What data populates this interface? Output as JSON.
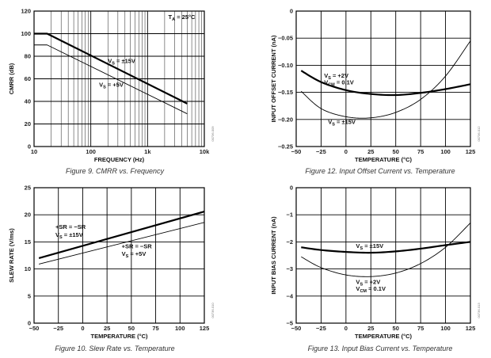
{
  "chart_data": [
    {
      "id": "cmrr",
      "type": "line",
      "title": "",
      "caption": "Figure 9. CMRR vs. Frequency",
      "code": "00736-009",
      "xlabel": "FREQUENCY (Hz)",
      "ylabel": "CMRR (dB)",
      "xscale": "log",
      "xlim": [
        10,
        10000
      ],
      "ylim": [
        0,
        120
      ],
      "xticks": [
        10,
        100,
        1000,
        10000
      ],
      "xtick_labels": [
        "10",
        "100",
        "1k",
        "10k"
      ],
      "yticks": [
        0,
        20,
        40,
        60,
        80,
        100,
        120
      ],
      "ytick_labels": [
        "0",
        "20",
        "40",
        "60",
        "80",
        "100",
        "120"
      ],
      "series": [
        {
          "name": "VS = ±15V",
          "weight": "thick",
          "x": [
            10,
            17,
            5000
          ],
          "y": [
            100,
            100,
            38
          ]
        },
        {
          "name": "VS = +5V",
          "weight": "thin",
          "x": [
            10,
            17,
            5000
          ],
          "y": [
            90,
            90,
            29
          ]
        }
      ],
      "annotations": [
        {
          "text": "TA = 25°C",
          "base": "T",
          "sub": "A",
          "rest": " = 25°C",
          "x": 4000,
          "y": 113,
          "anchor": "middle"
        },
        {
          "text": "VS = ±15V",
          "base": "V",
          "sub": "S",
          "rest": " = ±15V",
          "x": 200,
          "y": 74,
          "anchor": "start"
        },
        {
          "text": "VS = +5V",
          "base": "V",
          "sub": "S",
          "rest": " = +5V",
          "x": 140,
          "y": 53,
          "anchor": "start"
        }
      ]
    },
    {
      "id": "offset",
      "type": "line",
      "title": "",
      "caption": "Figure 12. Input Offset Current vs. Temperature",
      "code": "00736-012",
      "xlabel": "TEMPERATURE (°C)",
      "ylabel": "INPUT OFFSET CURRENT (nA)",
      "xscale": "linear",
      "xlim": [
        -50,
        125
      ],
      "ylim": [
        -0.25,
        0
      ],
      "xticks": [
        -50,
        -25,
        0,
        25,
        50,
        75,
        100,
        125
      ],
      "xtick_labels": [
        "−50",
        "−25",
        "0",
        "25",
        "50",
        "75",
        "100",
        "125"
      ],
      "yticks": [
        -0.25,
        -0.2,
        -0.15,
        -0.1,
        -0.05,
        0
      ],
      "ytick_labels": [
        "−0.25",
        "−0.20",
        "−0.15",
        "−0.10",
        "−0.05",
        "0"
      ],
      "series": [
        {
          "name": "VS = +2V, VCM = 0.1V",
          "weight": "thick",
          "x": [
            -45,
            -25,
            0,
            25,
            50,
            75,
            100,
            125
          ],
          "y": [
            -0.11,
            -0.131,
            -0.146,
            -0.153,
            -0.155,
            -0.151,
            -0.144,
            -0.135
          ]
        },
        {
          "name": "VS = ±15V",
          "weight": "thin",
          "x": [
            -45,
            -25,
            0,
            25,
            50,
            75,
            100,
            125
          ],
          "y": [
            -0.148,
            -0.18,
            -0.195,
            -0.197,
            -0.187,
            -0.163,
            -0.12,
            -0.055
          ]
        }
      ],
      "annotations": [
        {
          "text": "VS = +2V",
          "base": "V",
          "sub": "S",
          "rest": " = +2V",
          "x": -22,
          "y": -0.123,
          "anchor": "start"
        },
        {
          "text": "VCM = 0.1V",
          "base": "V",
          "sub": "CM",
          "rest": " = 0.1V",
          "x": -22,
          "y": -0.135,
          "anchor": "start"
        },
        {
          "text": "VS = ±15V",
          "base": "V",
          "sub": "S",
          "rest": " = ±15V",
          "x": -18,
          "y": -0.208,
          "anchor": "start"
        }
      ]
    },
    {
      "id": "slew",
      "type": "line",
      "title": "",
      "caption": "Figure 10. Slew Rate vs. Temperature",
      "code": "00736-010",
      "xlabel": "TEMPERATURE (°C)",
      "ylabel": "SLEW RATE (V/ms)",
      "xscale": "linear",
      "xlim": [
        -50,
        125
      ],
      "ylim": [
        0,
        25
      ],
      "xticks": [
        -50,
        -25,
        0,
        25,
        50,
        75,
        100,
        125
      ],
      "xtick_labels": [
        "−50",
        "−25",
        "0",
        "25",
        "50",
        "75",
        "100",
        "125"
      ],
      "yticks": [
        0,
        5,
        10,
        15,
        20,
        25
      ],
      "ytick_labels": [
        "0",
        "5",
        "10",
        "15",
        "20",
        "25"
      ],
      "series": [
        {
          "name": "+SR = −SR, VS = ±15V",
          "weight": "thick",
          "x": [
            -45,
            125
          ],
          "y": [
            12.0,
            20.6
          ]
        },
        {
          "name": "+SR = −SR, VS = +5V",
          "weight": "thin",
          "x": [
            -45,
            125
          ],
          "y": [
            10.9,
            18.6
          ]
        }
      ],
      "annotations": [
        {
          "text": "+SR = −SR",
          "base": "+SR = −SR",
          "sub": "",
          "rest": "",
          "x": -28,
          "y": 17.4,
          "anchor": "start"
        },
        {
          "text": "VS = ±15V",
          "base": "V",
          "sub": "S",
          "rest": " = ±15V",
          "x": -28,
          "y": 15.9,
          "anchor": "start"
        },
        {
          "text": "+SR = −SR",
          "base": "+SR = −SR",
          "sub": "",
          "rest": "",
          "x": 40,
          "y": 13.8,
          "anchor": "start"
        },
        {
          "text": "VS = +5V",
          "base": "V",
          "sub": "S",
          "rest": " = +5V",
          "x": 40,
          "y": 12.4,
          "anchor": "start"
        }
      ]
    },
    {
      "id": "bias",
      "type": "line",
      "title": "",
      "caption": "Figure 13. Input Bias Current vs. Temperature",
      "code": "00736-013",
      "xlabel": "TEMPERATURE (°C)",
      "ylabel": "INPUT BIAS CURRENT (nA)",
      "xscale": "linear",
      "xlim": [
        -50,
        125
      ],
      "ylim": [
        -5,
        0
      ],
      "xticks": [
        -50,
        -25,
        0,
        25,
        50,
        75,
        100,
        125
      ],
      "xtick_labels": [
        "−50",
        "−25",
        "0",
        "25",
        "50",
        "75",
        "100",
        "125"
      ],
      "yticks": [
        -5,
        -4,
        -3,
        -2,
        -1,
        0
      ],
      "ytick_labels": [
        "−5",
        "−4",
        "−3",
        "−2",
        "−1",
        "0"
      ],
      "series": [
        {
          "name": "VS = ±15V",
          "weight": "thick",
          "x": [
            -45,
            -25,
            0,
            25,
            50,
            75,
            100,
            125
          ],
          "y": [
            -2.2,
            -2.3,
            -2.37,
            -2.4,
            -2.35,
            -2.25,
            -2.12,
            -2.0
          ]
        },
        {
          "name": "VS = +2V, VCM = 0.1V",
          "weight": "thin",
          "x": [
            -45,
            -25,
            0,
            25,
            50,
            75,
            100,
            125
          ],
          "y": [
            -2.55,
            -2.95,
            -3.22,
            -3.28,
            -3.15,
            -2.8,
            -2.2,
            -1.3
          ]
        }
      ],
      "annotations": [
        {
          "text": "VS = ±15V",
          "base": "V",
          "sub": "S",
          "rest": " = ±15V",
          "x": 10,
          "y": -2.22,
          "anchor": "start"
        },
        {
          "text": "VS = +2V",
          "base": "V",
          "sub": "S",
          "rest": " = +2V",
          "x": 10,
          "y": -3.55,
          "anchor": "start"
        },
        {
          "text": "VCM = 0.1V",
          "base": "V",
          "sub": "CM",
          "rest": " = 0.1V",
          "x": 10,
          "y": -3.8,
          "anchor": "start"
        }
      ]
    }
  ]
}
